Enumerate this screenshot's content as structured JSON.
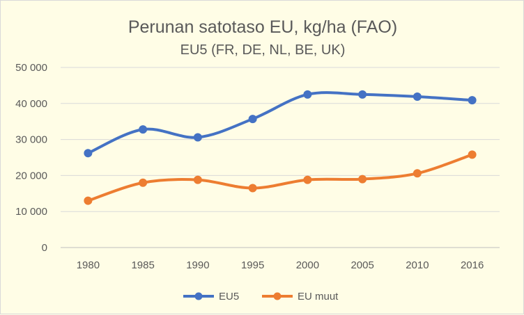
{
  "chart_data": {
    "type": "line",
    "title": "Perunan satotaso EU, kg/ha (FAO)",
    "subtitle": "EU5 (FR, DE, NL, BE, UK)",
    "categories": [
      "1980",
      "1985",
      "1990",
      "1995",
      "2000",
      "2005",
      "2010",
      "2016"
    ],
    "y_tick_labels": [
      "0",
      "10 000",
      "20 000",
      "30 000",
      "40 000",
      "50 000"
    ],
    "ylim": [
      0,
      50000
    ],
    "y_ticks": [
      0,
      10000,
      20000,
      30000,
      40000,
      50000
    ],
    "grid": true,
    "legend_position": "bottom",
    "series": [
      {
        "name": "EU5",
        "color": "#4472C4",
        "values": [
          26200,
          32800,
          30600,
          35700,
          42500,
          42500,
          41900,
          40900
        ]
      },
      {
        "name": "EU muut",
        "color": "#ED7D31",
        "values": [
          13000,
          18000,
          18800,
          16500,
          18800,
          19000,
          20600,
          25800
        ]
      }
    ],
    "background_color": "#FFFDE6",
    "smooth_lines": true
  }
}
